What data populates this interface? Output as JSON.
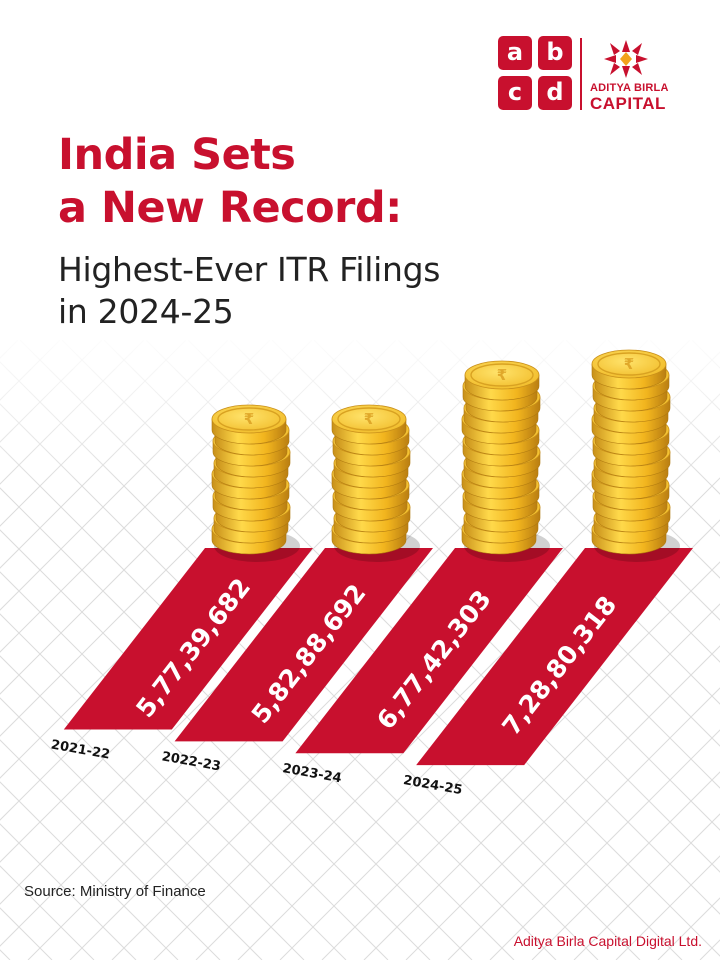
{
  "brand": {
    "tiles": [
      "a",
      "b",
      "c",
      "d"
    ],
    "name_line_1": "ADITYA BIRLA",
    "name_line_2": "CAPITAL",
    "color": "#c8102e"
  },
  "title": {
    "line_1": "India Sets",
    "line_2": "a New Record:"
  },
  "subtitle": {
    "line_1": "Highest-Ever ITR Filings",
    "line_2": "in 2024-25"
  },
  "chart_data": {
    "type": "bar",
    "categories": [
      "2021-22",
      "2022-23",
      "2023-24",
      "2024-25"
    ],
    "value_labels": [
      "5,77,39,682",
      "5,82,88,692",
      "6,77,42,303",
      "7,28,80,318"
    ],
    "values": [
      57739682,
      58288692,
      67742303,
      72880318
    ],
    "title": "",
    "xlabel": "",
    "ylabel": "",
    "bar_color": "#c8102e",
    "coin_color": "#f2c12e",
    "coin_icon": "rupee-icon"
  },
  "source": "Source: Ministry of Finance",
  "footer": "Aditya Birla Capital Digital Ltd."
}
